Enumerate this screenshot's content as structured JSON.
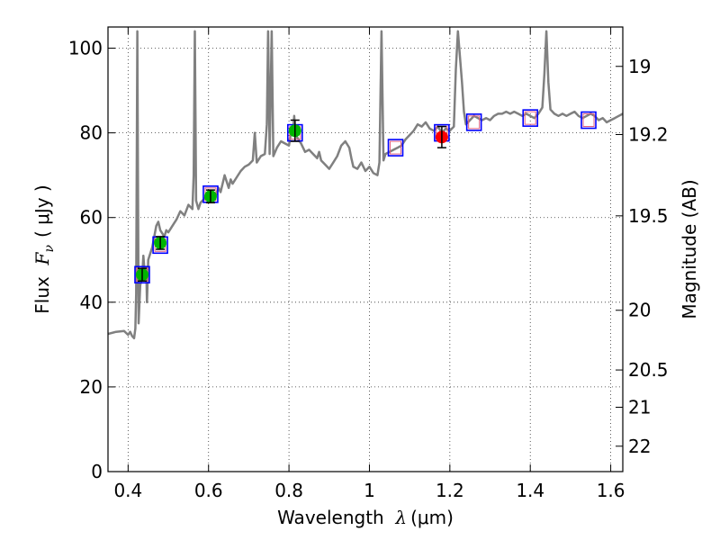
{
  "chart_data": {
    "type": "line",
    "xlabel": {
      "prefix": "Wavelength  ",
      "symbol": "λ",
      "unit": "(μm)"
    },
    "ylabel": {
      "prefix": "Flux  ",
      "symbol": "F",
      "subscript": "ν",
      "unit": "( μJy )"
    },
    "y2label": "Magnitude (AB)",
    "xlim": [
      0.35,
      1.63
    ],
    "ylim": [
      0,
      105
    ],
    "xticks": [
      0.4,
      0.6,
      0.8,
      1.0,
      1.2,
      1.4,
      1.6
    ],
    "xtick_labels": [
      "0.4",
      "0.6",
      "0.8",
      "1",
      "1.2",
      "1.4",
      "1.6"
    ],
    "yticks": [
      0,
      20,
      40,
      60,
      80,
      100
    ],
    "ytick_labels": [
      "0",
      "20",
      "40",
      "60",
      "80",
      "100"
    ],
    "y2ticks": [
      {
        "label": "19",
        "flux": 95.7
      },
      {
        "label": "19.2",
        "flux": 79.6
      },
      {
        "label": "19.5",
        "flux": 60.4
      },
      {
        "label": "20",
        "flux": 38.1
      },
      {
        "label": "20.5",
        "flux": 24.0
      },
      {
        "label": "21",
        "flux": 15.2
      },
      {
        "label": "22",
        "flux": 6.0
      }
    ],
    "grid": true,
    "colors": {
      "spectrum": "#808080",
      "obs_green": "#00b400",
      "obs_red": "#ff0000",
      "model_box": "#0000ff",
      "model_inner": "#e06080",
      "errorbar": "#000000"
    },
    "spectrum": [
      [
        0.35,
        32.5
      ],
      [
        0.37,
        33.0
      ],
      [
        0.39,
        33.2
      ],
      [
        0.4,
        32.3
      ],
      [
        0.405,
        33.0
      ],
      [
        0.41,
        32.0
      ],
      [
        0.415,
        31.5
      ],
      [
        0.418,
        33.8
      ],
      [
        0.42,
        42.0
      ],
      [
        0.423,
        104.0
      ],
      [
        0.426,
        35.0
      ],
      [
        0.43,
        44.0
      ],
      [
        0.435,
        46.0
      ],
      [
        0.438,
        51.0
      ],
      [
        0.441,
        47.0
      ],
      [
        0.445,
        48.0
      ],
      [
        0.447,
        40.0
      ],
      [
        0.45,
        50.0
      ],
      [
        0.46,
        53.0
      ],
      [
        0.47,
        58.0
      ],
      [
        0.475,
        59.0
      ],
      [
        0.48,
        57.0
      ],
      [
        0.49,
        55.5
      ],
      [
        0.495,
        57.0
      ],
      [
        0.5,
        56.5
      ],
      [
        0.51,
        58.0
      ],
      [
        0.52,
        59.5
      ],
      [
        0.53,
        61.5
      ],
      [
        0.54,
        60.5
      ],
      [
        0.55,
        63.0
      ],
      [
        0.56,
        62.0
      ],
      [
        0.563,
        70.0
      ],
      [
        0.566,
        104.0
      ],
      [
        0.569,
        64.0
      ],
      [
        0.575,
        62.0
      ],
      [
        0.58,
        63.5
      ],
      [
        0.59,
        64.5
      ],
      [
        0.6,
        65.5
      ],
      [
        0.61,
        66.0
      ],
      [
        0.62,
        65.5
      ],
      [
        0.625,
        67.0
      ],
      [
        0.63,
        66.0
      ],
      [
        0.64,
        70.0
      ],
      [
        0.65,
        67.0
      ],
      [
        0.655,
        69.0
      ],
      [
        0.66,
        68.0
      ],
      [
        0.67,
        69.5
      ],
      [
        0.68,
        71.0
      ],
      [
        0.69,
        72.0
      ],
      [
        0.7,
        72.5
      ],
      [
        0.71,
        73.5
      ],
      [
        0.715,
        80.0
      ],
      [
        0.72,
        73.0
      ],
      [
        0.73,
        74.5
      ],
      [
        0.74,
        75.0
      ],
      [
        0.745,
        82.0
      ],
      [
        0.748,
        104.0
      ],
      [
        0.752,
        75.0
      ],
      [
        0.757,
        104.0
      ],
      [
        0.761,
        74.5
      ],
      [
        0.77,
        76.5
      ],
      [
        0.78,
        78.0
      ],
      [
        0.79,
        77.5
      ],
      [
        0.8,
        77.0
      ],
      [
        0.805,
        80.0
      ],
      [
        0.81,
        80.5
      ],
      [
        0.813,
        84.0
      ],
      [
        0.816,
        80.0
      ],
      [
        0.82,
        79.0
      ],
      [
        0.83,
        77.5
      ],
      [
        0.84,
        75.5
      ],
      [
        0.85,
        76.0
      ],
      [
        0.86,
        75.0
      ],
      [
        0.87,
        74.0
      ],
      [
        0.875,
        75.5
      ],
      [
        0.88,
        73.5
      ],
      [
        0.89,
        72.5
      ],
      [
        0.9,
        71.5
      ],
      [
        0.91,
        73.0
      ],
      [
        0.92,
        74.5
      ],
      [
        0.93,
        77.0
      ],
      [
        0.94,
        78.0
      ],
      [
        0.95,
        76.5
      ],
      [
        0.955,
        74.0
      ],
      [
        0.96,
        72.0
      ],
      [
        0.97,
        71.5
      ],
      [
        0.98,
        73.0
      ],
      [
        0.99,
        71.0
      ],
      [
        1.0,
        72.0
      ],
      [
        1.01,
        70.5
      ],
      [
        1.02,
        70.0
      ],
      [
        1.025,
        73.0
      ],
      [
        1.03,
        104.0
      ],
      [
        1.035,
        73.5
      ],
      [
        1.04,
        75.0
      ],
      [
        1.05,
        75.5
      ],
      [
        1.06,
        76.0
      ],
      [
        1.07,
        76.5
      ],
      [
        1.08,
        77.0
      ],
      [
        1.09,
        78.5
      ],
      [
        1.1,
        79.5
      ],
      [
        1.11,
        80.5
      ],
      [
        1.12,
        82.0
      ],
      [
        1.13,
        81.5
      ],
      [
        1.14,
        82.5
      ],
      [
        1.15,
        81.0
      ],
      [
        1.16,
        80.5
      ],
      [
        1.17,
        81.5
      ],
      [
        1.18,
        80.0
      ],
      [
        1.19,
        81.0
      ],
      [
        1.2,
        80.5
      ],
      [
        1.21,
        81.5
      ],
      [
        1.215,
        95.0
      ],
      [
        1.22,
        104.0
      ],
      [
        1.23,
        92.0
      ],
      [
        1.235,
        85.0
      ],
      [
        1.24,
        82.0
      ],
      [
        1.25,
        83.0
      ],
      [
        1.26,
        84.0
      ],
      [
        1.27,
        83.5
      ],
      [
        1.28,
        83.0
      ],
      [
        1.29,
        83.5
      ],
      [
        1.3,
        83.0
      ],
      [
        1.31,
        84.0
      ],
      [
        1.32,
        84.5
      ],
      [
        1.33,
        84.5
      ],
      [
        1.34,
        85.0
      ],
      [
        1.35,
        84.5
      ],
      [
        1.36,
        85.0
      ],
      [
        1.37,
        84.5
      ],
      [
        1.38,
        84.0
      ],
      [
        1.39,
        84.5
      ],
      [
        1.4,
        84.0
      ],
      [
        1.41,
        83.5
      ],
      [
        1.42,
        84.5
      ],
      [
        1.43,
        86.0
      ],
      [
        1.435,
        94.0
      ],
      [
        1.44,
        104.0
      ],
      [
        1.445,
        92.0
      ],
      [
        1.45,
        85.5
      ],
      [
        1.46,
        84.5
      ],
      [
        1.47,
        84.0
      ],
      [
        1.48,
        84.5
      ],
      [
        1.49,
        84.0
      ],
      [
        1.5,
        84.5
      ],
      [
        1.51,
        85.0
      ],
      [
        1.52,
        84.0
      ],
      [
        1.53,
        83.5
      ],
      [
        1.54,
        84.0
      ],
      [
        1.55,
        84.5
      ],
      [
        1.56,
        84.0
      ],
      [
        1.57,
        83.0
      ],
      [
        1.58,
        83.5
      ],
      [
        1.59,
        82.5
      ],
      [
        1.6,
        83.0
      ],
      [
        1.61,
        83.5
      ],
      [
        1.62,
        84.0
      ],
      [
        1.63,
        84.5
      ]
    ],
    "observations": [
      {
        "x": 0.435,
        "y": 46.5,
        "err": 1.5,
        "color": "green"
      },
      {
        "x": 0.48,
        "y": 54.0,
        "err": 1.5,
        "color": "green"
      },
      {
        "x": 0.605,
        "y": 65.0,
        "err": 1.5,
        "color": "green"
      },
      {
        "x": 0.815,
        "y": 80.5,
        "err": 2.5,
        "color": "green"
      },
      {
        "x": 1.18,
        "y": 79.0,
        "err": 2.5,
        "color": "red"
      }
    ],
    "model_points": [
      {
        "x": 0.435,
        "y": 46.5
      },
      {
        "x": 0.48,
        "y": 53.5
      },
      {
        "x": 0.605,
        "y": 65.5
      },
      {
        "x": 0.815,
        "y": 80.0
      },
      {
        "x": 1.065,
        "y": 76.5
      },
      {
        "x": 1.18,
        "y": 80.0
      },
      {
        "x": 1.26,
        "y": 82.5
      },
      {
        "x": 1.4,
        "y": 83.5
      },
      {
        "x": 1.545,
        "y": 83.0
      }
    ]
  }
}
